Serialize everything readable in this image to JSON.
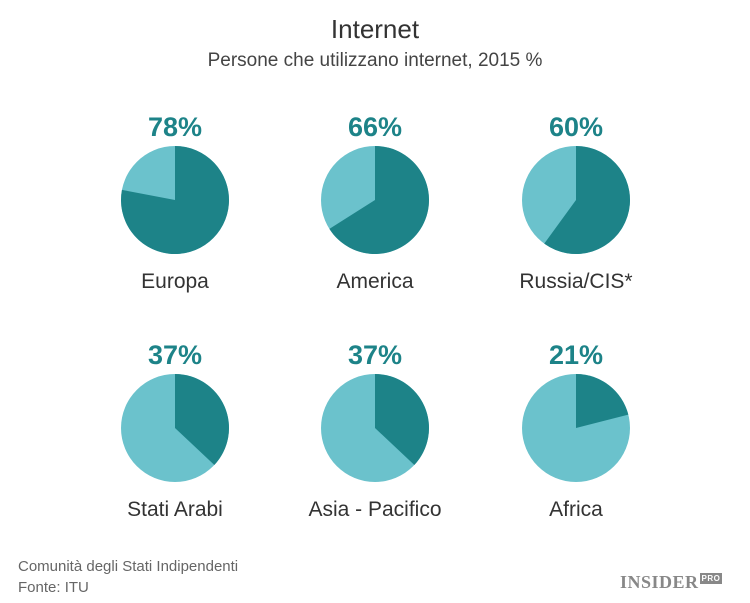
{
  "header": {
    "title": "Internet",
    "subtitle": "Persone che utilizzano internet, 2015 %"
  },
  "chart_data": {
    "type": "pie",
    "title": "Internet",
    "subtitle": "Persone che utilizzano internet, 2015 %",
    "colors": {
      "users": "#1d8388",
      "non_users": "#6bc2cc"
    },
    "panels": [
      {
        "region": "Europa",
        "label": "78%",
        "value": 78
      },
      {
        "region": "America",
        "label": "66%",
        "value": 66
      },
      {
        "region": "Russia/CIS*",
        "label": "60%",
        "value": 60
      },
      {
        "region": "Stati Arabi",
        "label": "37%",
        "value": 37
      },
      {
        "region": "Asia - Pacifico",
        "label": "37%",
        "value": 37
      },
      {
        "region": "Africa",
        "label": "21%",
        "value": 21
      }
    ]
  },
  "footer": {
    "note": "Comunità degli Stati Indipendenti",
    "source": "Fonte: ITU",
    "logo_text": "INSIDER",
    "logo_badge": "PRO"
  }
}
